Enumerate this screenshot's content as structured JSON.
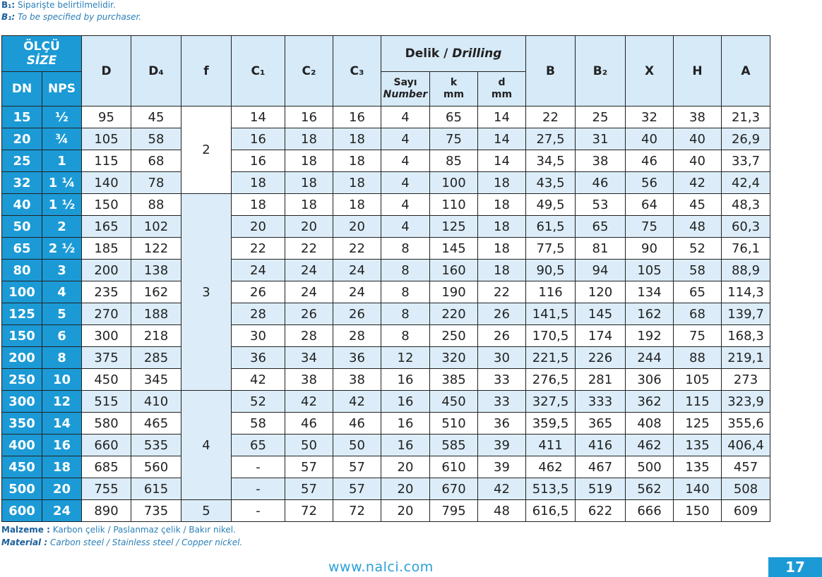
{
  "notes": {
    "tr": {
      "key": "B₁:",
      "text": "Siparişte belirtilmelidir."
    },
    "en": {
      "key": "B₁:",
      "text": "To be specified by purchaser."
    }
  },
  "table": {
    "header": {
      "size_tr": "ÖLÇÜ",
      "size_en": "SİZE",
      "dn": "DN",
      "nps": "NPS",
      "d": "D",
      "d4": "D₄",
      "f": "f",
      "c1": "C₁",
      "c2": "C₂",
      "c3": "C₃",
      "drilling_tr": "Delik /",
      "drilling_en": "Drilling",
      "count_tr": "Sayı",
      "count_en": "Number",
      "k": "k",
      "k_unit": "mm",
      "dd": "d",
      "dd_unit": "mm",
      "b": "B",
      "b2": "B₂",
      "x": "X",
      "h": "H",
      "a": "A"
    },
    "f": [
      "2",
      "3",
      "4",
      "5"
    ],
    "rows": [
      [
        "15",
        "½",
        "95",
        "45",
        "14",
        "16",
        "16",
        "4",
        "65",
        "14",
        "22",
        "25",
        "32",
        "38",
        "21,3"
      ],
      [
        "20",
        "¾",
        "105",
        "58",
        "16",
        "18",
        "18",
        "4",
        "75",
        "14",
        "27,5",
        "31",
        "40",
        "40",
        "26,9"
      ],
      [
        "25",
        "1",
        "115",
        "68",
        "16",
        "18",
        "18",
        "4",
        "85",
        "14",
        "34,5",
        "38",
        "46",
        "40",
        "33,7"
      ],
      [
        "32",
        "1 ¼",
        "140",
        "78",
        "18",
        "18",
        "18",
        "4",
        "100",
        "18",
        "43,5",
        "46",
        "56",
        "42",
        "42,4"
      ],
      [
        "40",
        "1 ½",
        "150",
        "88",
        "18",
        "18",
        "18",
        "4",
        "110",
        "18",
        "49,5",
        "53",
        "64",
        "45",
        "48,3"
      ],
      [
        "50",
        "2",
        "165",
        "102",
        "20",
        "20",
        "20",
        "4",
        "125",
        "18",
        "61,5",
        "65",
        "75",
        "48",
        "60,3"
      ],
      [
        "65",
        "2 ½",
        "185",
        "122",
        "22",
        "22",
        "22",
        "8",
        "145",
        "18",
        "77,5",
        "81",
        "90",
        "52",
        "76,1"
      ],
      [
        "80",
        "3",
        "200",
        "138",
        "24",
        "24",
        "24",
        "8",
        "160",
        "18",
        "90,5",
        "94",
        "105",
        "58",
        "88,9"
      ],
      [
        "100",
        "4",
        "235",
        "162",
        "26",
        "24",
        "24",
        "8",
        "190",
        "22",
        "116",
        "120",
        "134",
        "65",
        "114,3"
      ],
      [
        "125",
        "5",
        "270",
        "188",
        "28",
        "26",
        "26",
        "8",
        "220",
        "26",
        "141,5",
        "145",
        "162",
        "68",
        "139,7"
      ],
      [
        "150",
        "6",
        "300",
        "218",
        "30",
        "28",
        "28",
        "8",
        "250",
        "26",
        "170,5",
        "174",
        "192",
        "75",
        "168,3"
      ],
      [
        "200",
        "8",
        "375",
        "285",
        "36",
        "34",
        "36",
        "12",
        "320",
        "30",
        "221,5",
        "226",
        "244",
        "88",
        "219,1"
      ],
      [
        "250",
        "10",
        "450",
        "345",
        "42",
        "38",
        "38",
        "16",
        "385",
        "33",
        "276,5",
        "281",
        "306",
        "105",
        "273"
      ],
      [
        "300",
        "12",
        "515",
        "410",
        "52",
        "42",
        "42",
        "16",
        "450",
        "33",
        "327,5",
        "333",
        "362",
        "115",
        "323,9"
      ],
      [
        "350",
        "14",
        "580",
        "465",
        "58",
        "46",
        "46",
        "16",
        "510",
        "36",
        "359,5",
        "365",
        "408",
        "125",
        "355,6"
      ],
      [
        "400",
        "16",
        "660",
        "535",
        "65",
        "50",
        "50",
        "16",
        "585",
        "39",
        "411",
        "416",
        "462",
        "135",
        "406,4"
      ],
      [
        "450",
        "18",
        "685",
        "560",
        "-",
        "57",
        "57",
        "20",
        "610",
        "39",
        "462",
        "467",
        "500",
        "135",
        "457"
      ],
      [
        "500",
        "20",
        "755",
        "615",
        "-",
        "57",
        "57",
        "20",
        "670",
        "42",
        "513,5",
        "519",
        "562",
        "140",
        "508"
      ],
      [
        "600",
        "24",
        "890",
        "735",
        "-",
        "72",
        "72",
        "20",
        "795",
        "48",
        "616,5",
        "622",
        "666",
        "150",
        "609"
      ]
    ]
  },
  "footer": {
    "material_tr": {
      "key": "Malzeme :",
      "text": "Karbon çelik / Paslanmaz çelik / Bakır nikel."
    },
    "material_en": {
      "key": "Material :",
      "text": "Carbon steel / Stainless steel / Copper nickel."
    },
    "url": "www.nalci.com",
    "page": "17"
  }
}
